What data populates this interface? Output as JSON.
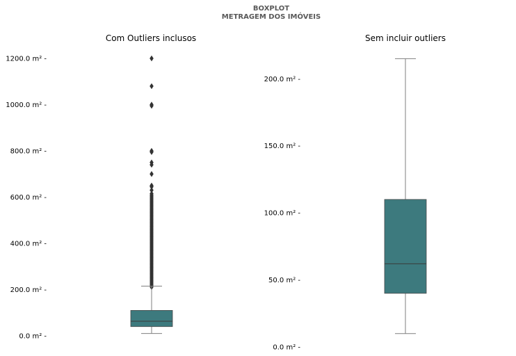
{
  "figure": {
    "suptitle_line1": "BOXPLOT",
    "suptitle_line2": "METRAGEM DOS IMÓVEIS"
  },
  "chart_data": [
    {
      "type": "boxplot",
      "title": "Com Outliers inclusos",
      "ylim": [
        0,
        1200
      ],
      "yticks": [
        0,
        200,
        400,
        600,
        800,
        1000,
        1200
      ],
      "ytick_labels": [
        "0.0 m² -",
        "200.0 m² -",
        "400.0 m² -",
        "600.0 m² -",
        "800.0 m² -",
        "1000.0 m² -",
        "1200.0 m² -"
      ],
      "box": {
        "whisker_low": 10,
        "q1": 40,
        "median": 63,
        "q3": 110,
        "whisker_high": 215,
        "color": "#3d7a7e"
      },
      "outliers_dense_range": [
        210,
        610
      ],
      "outliers": [
        615,
        630,
        645,
        650,
        700,
        740,
        750,
        795,
        800,
        995,
        1000,
        1080,
        1200
      ],
      "grid": false
    },
    {
      "type": "boxplot",
      "title": "Sem incluir outliers",
      "ylim": [
        0,
        210
      ],
      "yticks": [
        0,
        50,
        100,
        150,
        200
      ],
      "ytick_labels": [
        "0.0 m² -",
        "50.0 m² -",
        "100.0 m² -",
        "150.0 m² -",
        "200.0 m² -"
      ],
      "box": {
        "whisker_low": 10,
        "q1": 40,
        "median": 62,
        "q3": 110,
        "whisker_high": 215,
        "color": "#3d7a7e"
      },
      "grid": false
    }
  ]
}
